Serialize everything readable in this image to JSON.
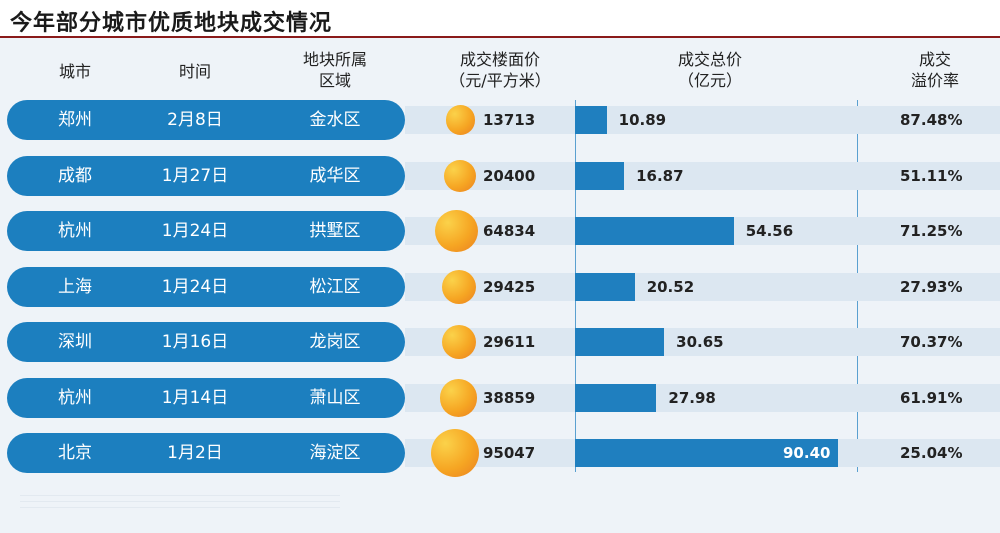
{
  "title": "今年部分城市优质地块成交情况",
  "headers": {
    "city": "城市",
    "date": "时间",
    "district": [
      "地块所属",
      "区域"
    ],
    "price": [
      "成交楼面价",
      "（元/平方米）"
    ],
    "total": [
      "成交总价",
      "（亿元）"
    ],
    "premium": [
      "成交",
      "溢价率"
    ]
  },
  "colors": {
    "accent": "#1c7fbf",
    "bar": "#1f7fbf",
    "circle": "#f6a623",
    "title_rule": "#8a1a1a"
  },
  "chart_data": {
    "type": "table",
    "columns": [
      "城市",
      "时间",
      "地块所属区域",
      "成交楼面价（元/平方米）",
      "成交总价（亿元）",
      "成交溢价率"
    ],
    "rows": [
      {
        "city": "郑州",
        "date": "2月8日",
        "district": "金水区",
        "price": "13713",
        "total": "10.89",
        "premium": "87.48%"
      },
      {
        "city": "成都",
        "date": "1月27日",
        "district": "成华区",
        "price": "20400",
        "total": "16.87",
        "premium": "51.11%"
      },
      {
        "city": "杭州",
        "date": "1月24日",
        "district": "拱墅区",
        "price": "64834",
        "total": "54.56",
        "premium": "71.25%"
      },
      {
        "city": "上海",
        "date": "1月24日",
        "district": "松江区",
        "price": "29425",
        "total": "20.52",
        "premium": "27.93%"
      },
      {
        "city": "深圳",
        "date": "1月16日",
        "district": "龙岗区",
        "price": "29611",
        "total": "30.65",
        "premium": "70.37%"
      },
      {
        "city": "杭州",
        "date": "1月14日",
        "district": "萧山区",
        "price": "38859",
        "total": "27.98",
        "premium": "61.91%"
      },
      {
        "city": "北京",
        "date": "1月2日",
        "district": "海淀区",
        "price": "95047",
        "total": "90.40",
        "premium": "25.04%"
      }
    ]
  }
}
